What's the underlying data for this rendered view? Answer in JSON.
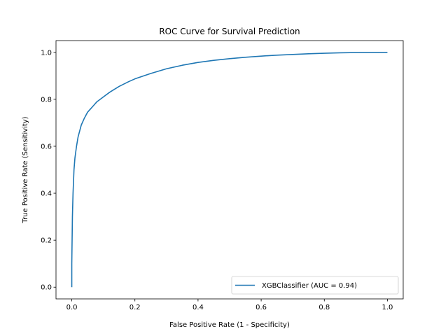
{
  "chart_data": {
    "type": "line",
    "title": "ROC Curve for Survival Prediction",
    "xlabel": "False Positive Rate (1 - Specificity)",
    "ylabel": "True Positive Rate (Sensitivity)",
    "xlim": [
      -0.05,
      1.05
    ],
    "ylim": [
      -0.05,
      1.05
    ],
    "xticks": [
      0.0,
      0.2,
      0.4,
      0.6,
      0.8,
      1.0
    ],
    "yticks": [
      0.0,
      0.2,
      0.4,
      0.6,
      0.8,
      1.0
    ],
    "xtick_labels": [
      "0.0",
      "0.2",
      "0.4",
      "0.6",
      "0.8",
      "1.0"
    ],
    "ytick_labels": [
      "0.0",
      "0.2",
      "0.4",
      "0.6",
      "0.8",
      "1.0"
    ],
    "grid": false,
    "legend_position": "lower right",
    "series": [
      {
        "name": "XGBClassifier (AUC = 0.94)",
        "color": "#1f77b4",
        "x": [
          0.0,
          0.0,
          0.002,
          0.004,
          0.007,
          0.01,
          0.015,
          0.02,
          0.03,
          0.04,
          0.05,
          0.06,
          0.07,
          0.08,
          0.1,
          0.12,
          0.15,
          0.18,
          0.2,
          0.25,
          0.3,
          0.35,
          0.4,
          0.45,
          0.5,
          0.55,
          0.6,
          0.65,
          0.7,
          0.75,
          0.8,
          0.85,
          0.9,
          0.95,
          1.0
        ],
        "y": [
          0.0,
          0.1,
          0.3,
          0.4,
          0.5,
          0.55,
          0.6,
          0.64,
          0.69,
          0.72,
          0.745,
          0.76,
          0.775,
          0.79,
          0.81,
          0.83,
          0.855,
          0.875,
          0.887,
          0.91,
          0.93,
          0.945,
          0.957,
          0.966,
          0.973,
          0.979,
          0.984,
          0.988,
          0.991,
          0.994,
          0.996,
          0.998,
          0.999,
          0.9995,
          1.0
        ]
      }
    ]
  }
}
